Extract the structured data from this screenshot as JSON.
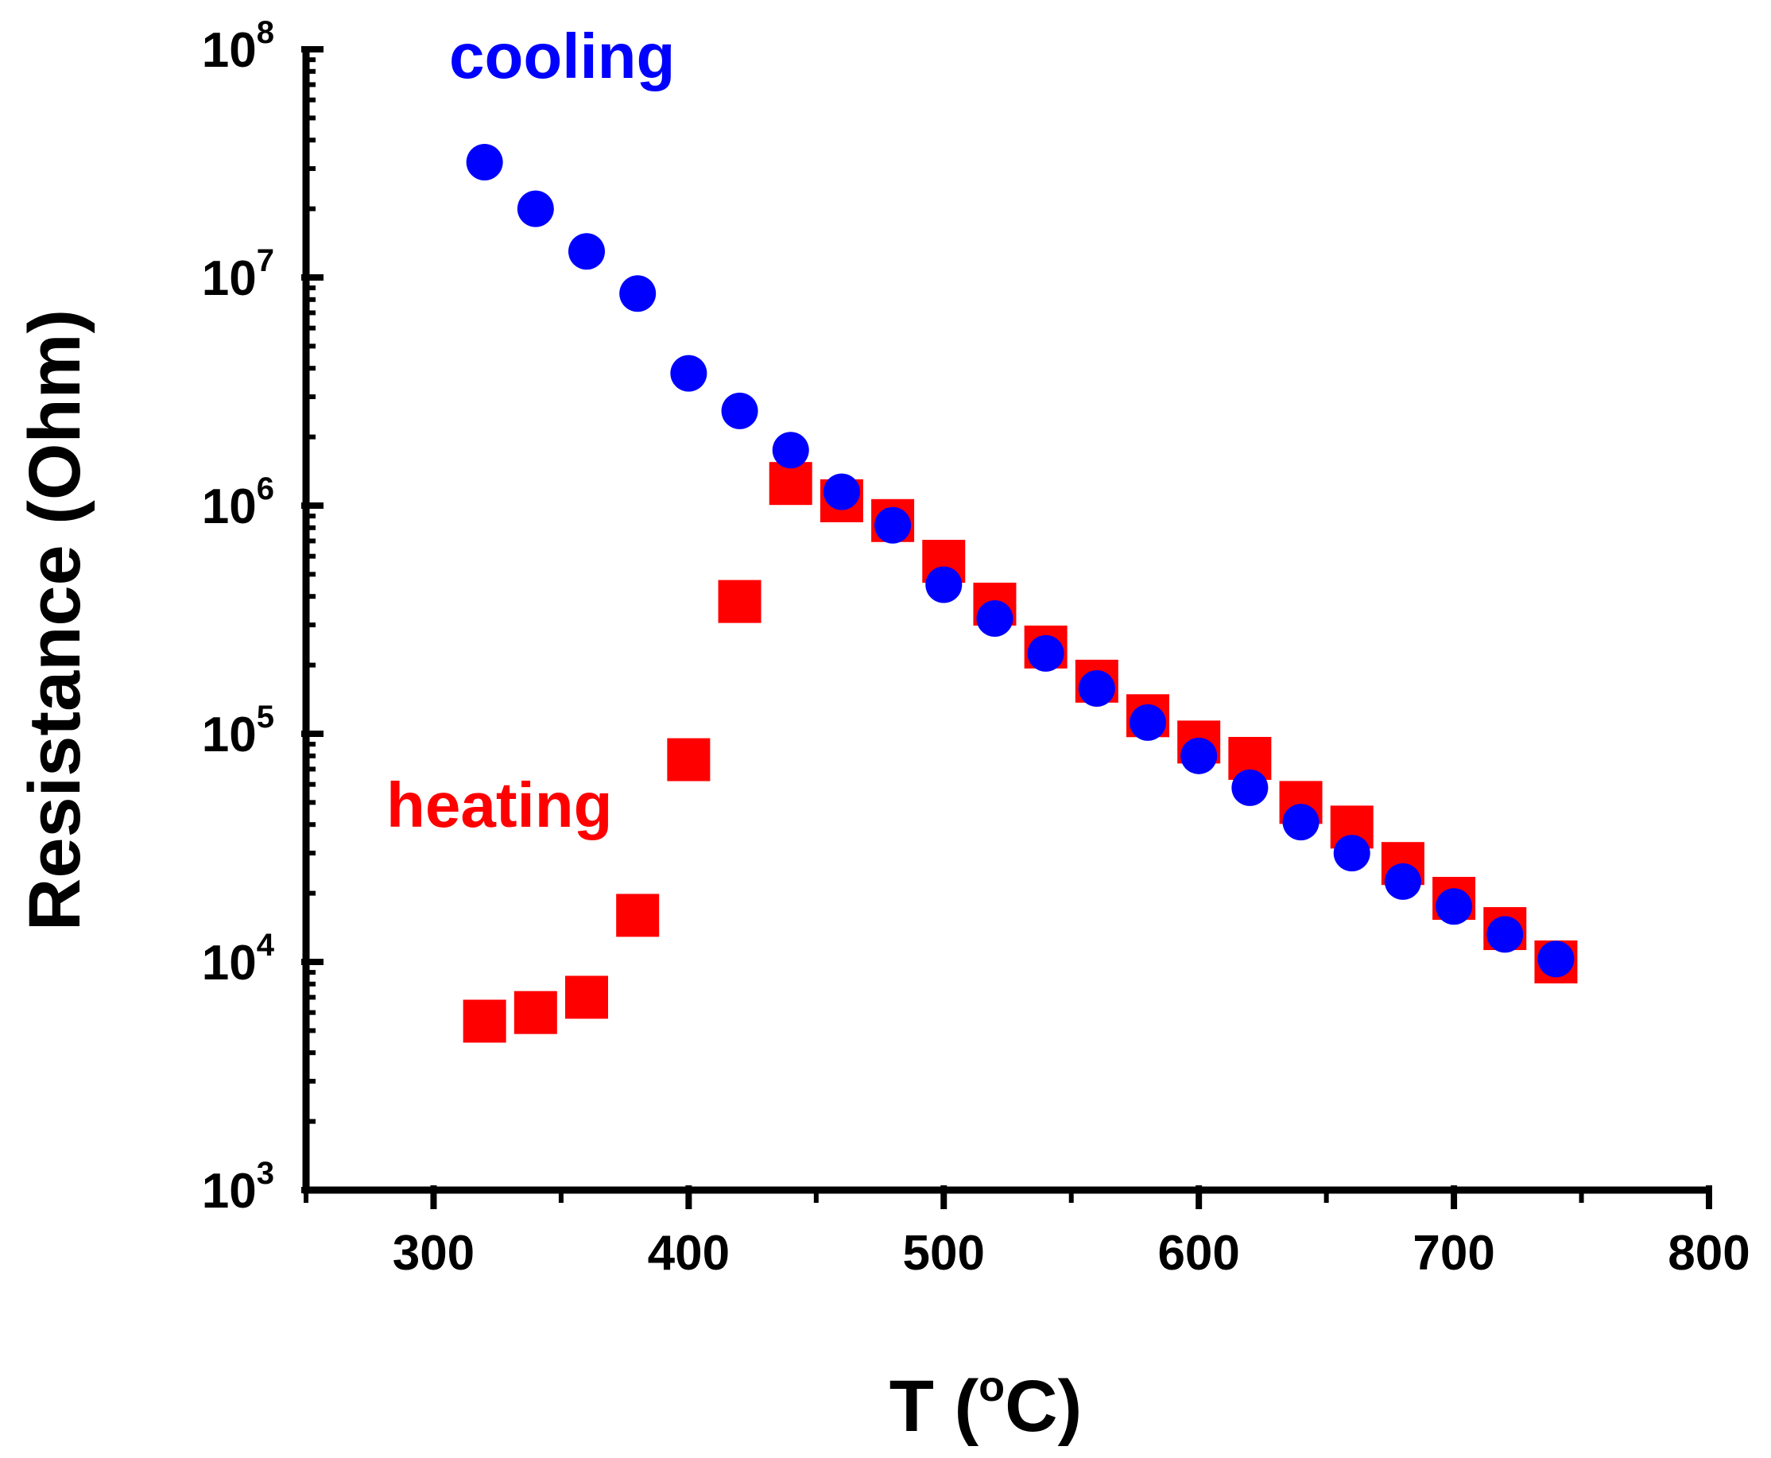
{
  "chart_data": {
    "type": "scatter",
    "title": "",
    "xlabel": "T (",
    "xlabel_sup": "o",
    "xlabel_unit": "C)",
    "ylabel": "Resistance (Ohm)",
    "xlim": [
      250,
      800
    ],
    "ylim": [
      1000,
      100000000
    ],
    "yscale": "log",
    "x_ticks": [
      300,
      400,
      500,
      600,
      700,
      800
    ],
    "x_tick_labels": [
      "300",
      "400",
      "500",
      "600",
      "700",
      "800"
    ],
    "y_ticks": [
      1000,
      10000,
      100000,
      1000000,
      10000000,
      100000000
    ],
    "y_tick_base": "10",
    "y_tick_exponents": [
      "3",
      "4",
      "5",
      "6",
      "7",
      "8"
    ],
    "grid": false,
    "series": [
      {
        "name": "heating",
        "label": "heating",
        "marker": "square",
        "color": "#ff0000",
        "x": [
          320,
          340,
          360,
          380,
          400,
          420,
          440,
          460,
          480,
          500,
          520,
          540,
          560,
          580,
          600,
          620,
          640,
          660,
          680,
          700,
          720,
          740
        ],
        "y": [
          5500,
          6000,
          7000,
          16000,
          77000,
          380000,
          1250000,
          1050000,
          860000,
          570000,
          370000,
          240000,
          170000,
          120000,
          92000,
          78000,
          50000,
          39000,
          27000,
          19000,
          14000,
          10000
        ]
      },
      {
        "name": "cooling",
        "label": "cooling",
        "marker": "circle",
        "color": "#0000ff",
        "x": [
          320,
          340,
          360,
          380,
          400,
          420,
          440,
          460,
          480,
          500,
          520,
          540,
          560,
          580,
          600,
          620,
          640,
          660,
          680,
          700,
          720,
          740
        ],
        "y": [
          32000000,
          20000000,
          13000000,
          8500000,
          3800000,
          2600000,
          1750000,
          1150000,
          820000,
          450000,
          320000,
          225000,
          158000,
          112000,
          80000,
          58000,
          41000,
          30000,
          22500,
          17500,
          13200,
          10300
        ]
      }
    ]
  }
}
